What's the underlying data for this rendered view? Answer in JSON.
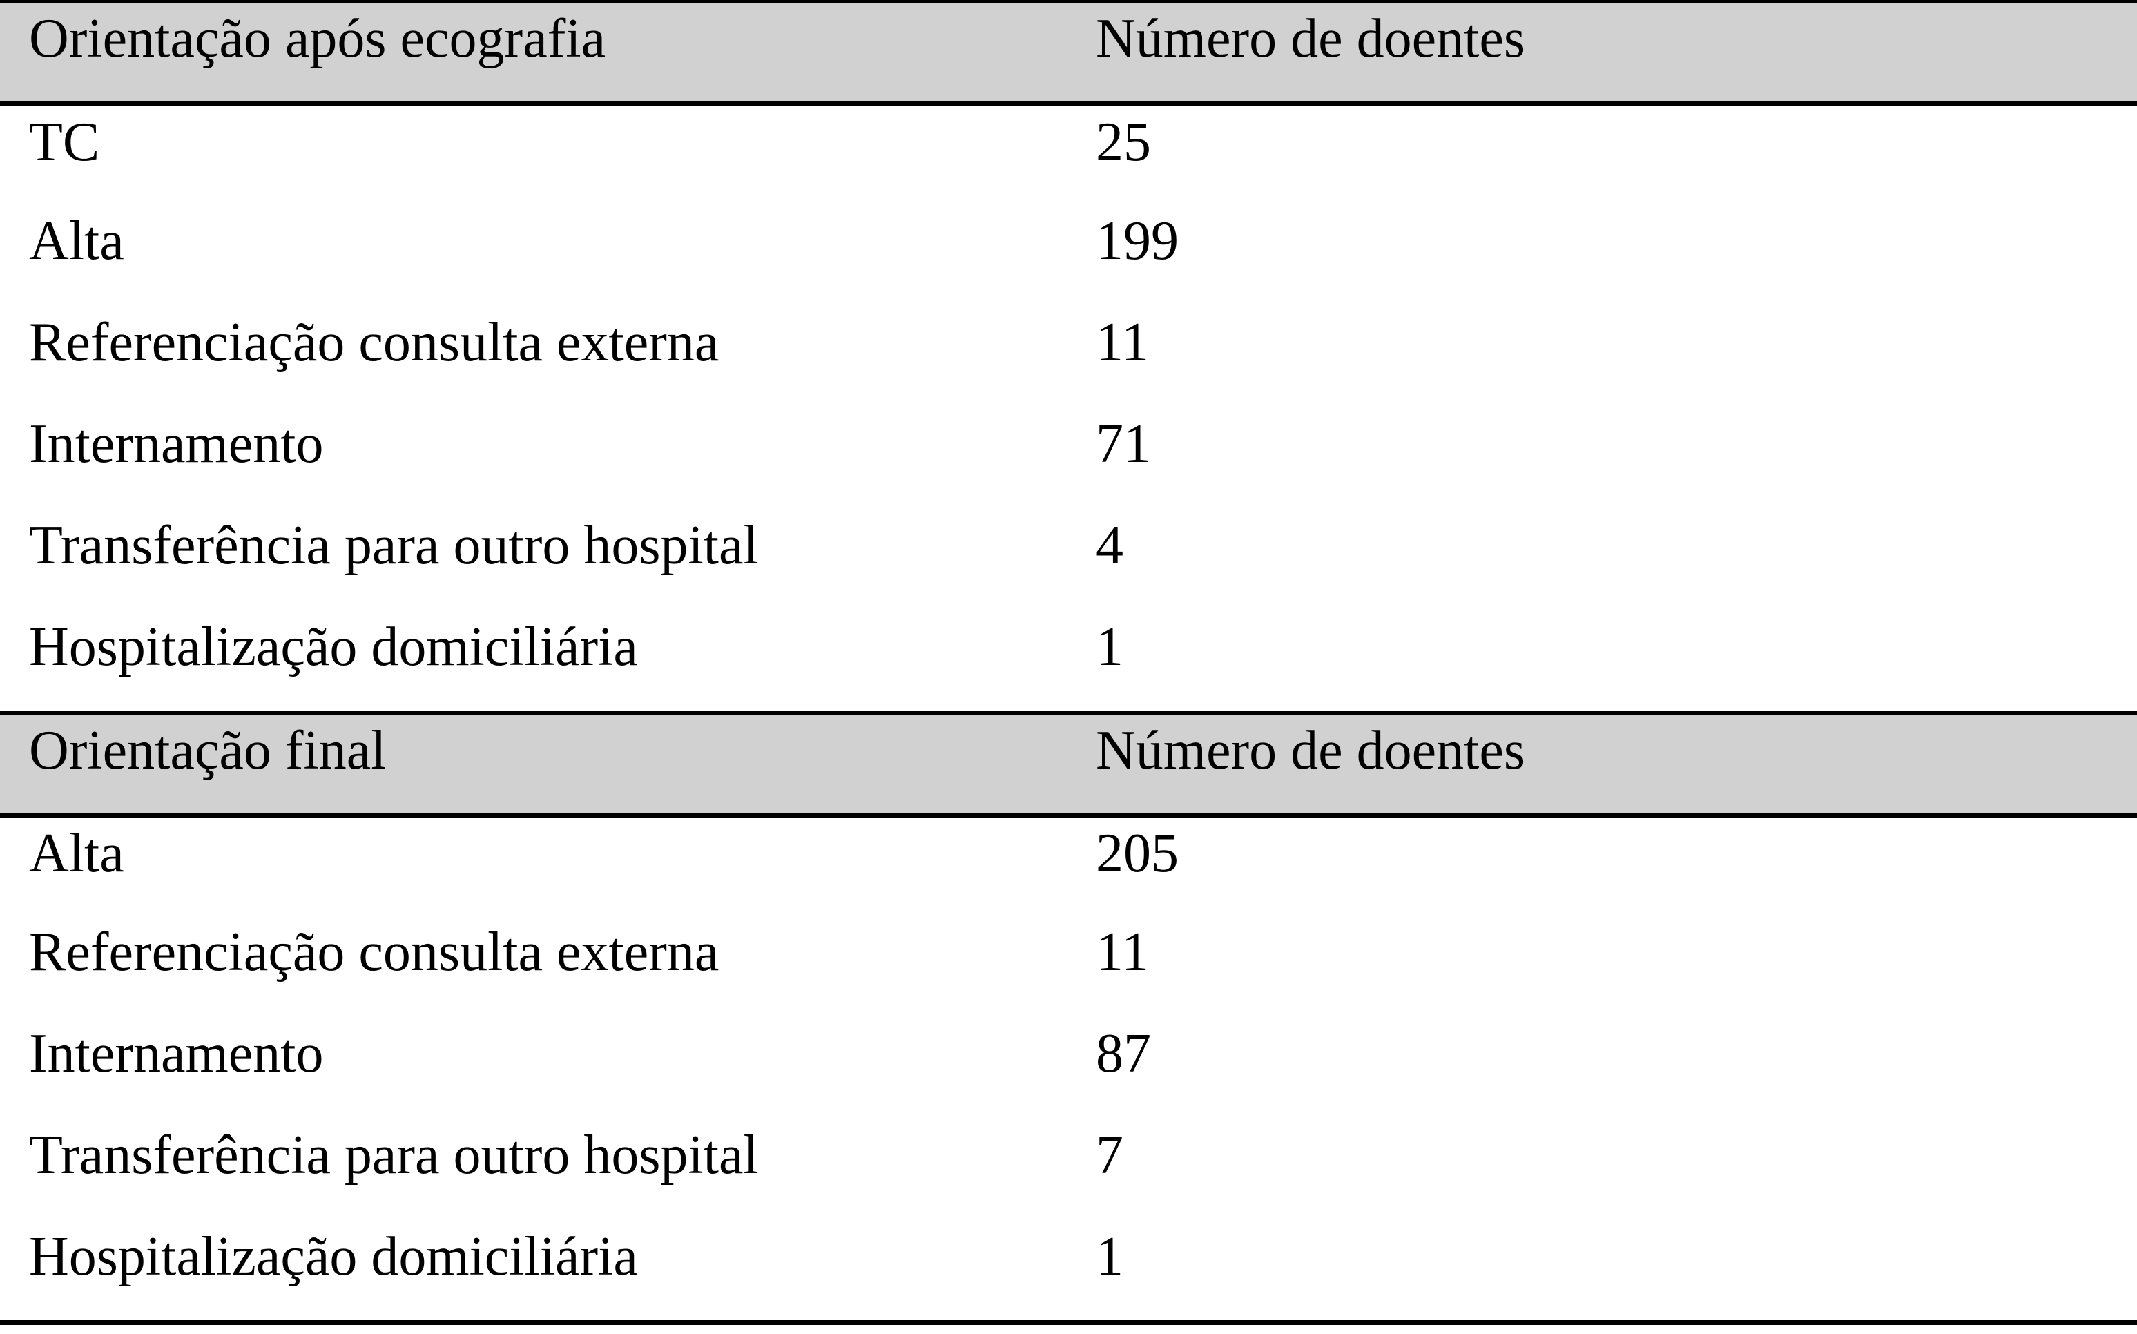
{
  "document": {
    "kind": "paper-table",
    "language": "pt"
  },
  "colors": {
    "header_background": "#d1d1d1",
    "border": "#000000",
    "text": "#000000",
    "row_background": "#ffffff"
  },
  "sections": [
    {
      "header": {
        "label": "Orientação após ecografia",
        "value": "Número de doentes"
      },
      "rows": [
        {
          "label": "TC",
          "value": "25"
        },
        {
          "label": "Alta",
          "value": "199"
        },
        {
          "label": "Referenciação consulta externa",
          "value": "11"
        },
        {
          "label": "Internamento",
          "value": "71"
        },
        {
          "label": "Transferência para outro hospital",
          "value": "4"
        },
        {
          "label": "Hospitalização domiciliária",
          "value": "1"
        }
      ]
    },
    {
      "header": {
        "label": "Orientação final",
        "value": "Número de doentes"
      },
      "rows": [
        {
          "label": "Alta",
          "value": "205"
        },
        {
          "label": "Referenciação consulta externa",
          "value": "11"
        },
        {
          "label": "Internamento",
          "value": "87"
        },
        {
          "label": "Transferência para outro hospital",
          "value": "7"
        },
        {
          "label": "Hospitalização domiciliária",
          "value": "1"
        }
      ]
    }
  ],
  "chart_data": {
    "type": "table",
    "tables": [
      {
        "columns": [
          "Orientação após ecografia",
          "Número de doentes"
        ],
        "categories": [
          "TC",
          "Alta",
          "Referenciação consulta externa",
          "Internamento",
          "Transferência para outro hospital",
          "Hospitalização domiciliária"
        ],
        "values": [
          25,
          199,
          11,
          71,
          4,
          1
        ]
      },
      {
        "columns": [
          "Orientação final",
          "Número de doentes"
        ],
        "categories": [
          "Alta",
          "Referenciação consulta externa",
          "Internamento",
          "Transferência para outro hospital",
          "Hospitalização domiciliária"
        ],
        "values": [
          205,
          11,
          87,
          7,
          1
        ]
      }
    ]
  }
}
